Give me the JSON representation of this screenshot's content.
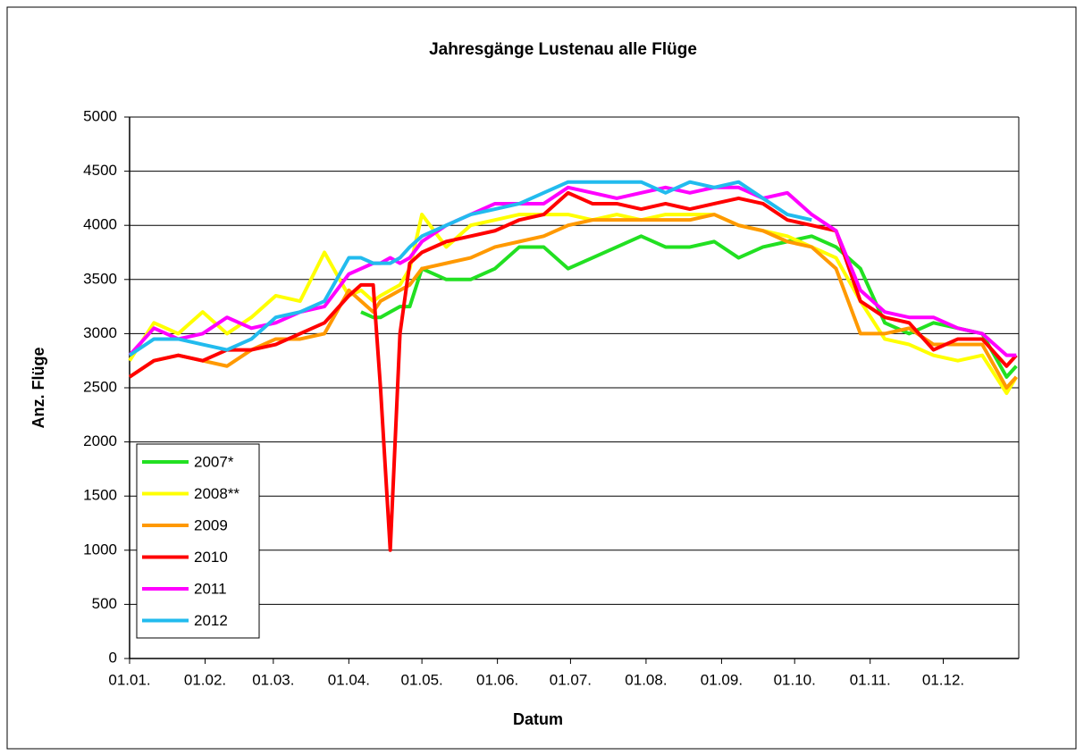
{
  "chart_data": {
    "type": "line",
    "title": "Jahresgänge Lustenau alle Flüge",
    "x_label": "Datum",
    "y_label": "Anz. Flüge",
    "x": [
      1,
      11,
      21,
      31,
      41,
      51,
      61,
      71,
      81,
      91,
      96,
      101,
      104,
      108,
      112,
      116,
      121,
      131,
      141,
      151,
      161,
      171,
      181,
      191,
      201,
      211,
      221,
      231,
      241,
      251,
      261,
      271,
      281,
      291,
      301,
      311,
      321,
      331,
      341,
      351,
      361,
      365
    ],
    "series": [
      {
        "name": "2007*",
        "color": "#22e022",
        "values": [
          null,
          null,
          null,
          null,
          null,
          null,
          null,
          null,
          null,
          null,
          3200,
          3150,
          3150,
          3200,
          3250,
          3250,
          3600,
          3500,
          3500,
          3600,
          3800,
          3800,
          3600,
          3700,
          3800,
          3900,
          3800,
          3800,
          3850,
          3700,
          3800,
          3850,
          3900,
          3800,
          3600,
          3100,
          3000,
          3100,
          3050,
          3000,
          2600,
          2700
        ]
      },
      {
        "name": "2008**",
        "color": "#ffff00",
        "values": [
          2750,
          3100,
          3000,
          3200,
          3000,
          3150,
          3350,
          3300,
          3750,
          3350,
          3400,
          3300,
          3350,
          3400,
          3450,
          3600,
          4100,
          3800,
          4000,
          4050,
          4100,
          4100,
          4100,
          4050,
          4100,
          4050,
          4100,
          4100,
          4100,
          4000,
          3950,
          3900,
          3800,
          3700,
          3300,
          2950,
          2900,
          2800,
          2750,
          2800,
          2450,
          2600
        ]
      },
      {
        "name": "2009",
        "color": "#ff9900",
        "values": [
          2600,
          2750,
          2800,
          2750,
          2700,
          2850,
          2950,
          2950,
          3000,
          3400,
          3300,
          3200,
          3300,
          3350,
          3400,
          3450,
          3600,
          3650,
          3700,
          3800,
          3850,
          3900,
          4000,
          4050,
          4050,
          4050,
          4050,
          4050,
          4100,
          4000,
          3950,
          3850,
          3800,
          3600,
          3000,
          3000,
          3050,
          2900,
          2900,
          2900,
          2500,
          2600
        ]
      },
      {
        "name": "2010",
        "color": "#ff0000",
        "values": [
          2600,
          2750,
          2800,
          2750,
          2850,
          2850,
          2900,
          3000,
          3100,
          3350,
          3450,
          3450,
          2500,
          1000,
          3000,
          3650,
          3750,
          3850,
          3900,
          3950,
          4050,
          4100,
          4300,
          4200,
          4200,
          4150,
          4200,
          4150,
          4200,
          4250,
          4200,
          4050,
          4000,
          3950,
          3300,
          3150,
          3100,
          2850,
          2950,
          2950,
          2700,
          2800
        ]
      },
      {
        "name": "2011",
        "color": "#ff00ff",
        "values": [
          2800,
          3050,
          2950,
          3000,
          3150,
          3050,
          3100,
          3200,
          3250,
          3550,
          3600,
          3650,
          3650,
          3700,
          3650,
          3700,
          3850,
          4000,
          4100,
          4200,
          4200,
          4200,
          4350,
          4300,
          4250,
          4300,
          4350,
          4300,
          4350,
          4350,
          4250,
          4300,
          4100,
          3950,
          3400,
          3200,
          3150,
          3150,
          3050,
          3000,
          2800,
          2800
        ]
      },
      {
        "name": "2012",
        "color": "#22bbee",
        "values": [
          2800,
          2950,
          2950,
          2900,
          2850,
          2950,
          3150,
          3200,
          3300,
          3700,
          3700,
          3650,
          3650,
          3650,
          3700,
          3800,
          3900,
          4000,
          4100,
          4150,
          4200,
          4300,
          4400,
          4400,
          4400,
          4400,
          4300,
          4400,
          4350,
          4400,
          4250,
          4100,
          4050,
          null,
          null,
          null,
          null,
          null,
          null,
          null,
          null,
          null
        ]
      }
    ],
    "xlim": [
      1,
      366
    ],
    "xticks": [
      {
        "value": 1,
        "label": "01.01."
      },
      {
        "value": 32,
        "label": "01.02."
      },
      {
        "value": 60,
        "label": "01.03."
      },
      {
        "value": 91,
        "label": "01.04."
      },
      {
        "value": 121,
        "label": "01.05."
      },
      {
        "value": 152,
        "label": "01.06."
      },
      {
        "value": 182,
        "label": "01.07."
      },
      {
        "value": 213,
        "label": "01.08."
      },
      {
        "value": 244,
        "label": "01.09."
      },
      {
        "value": 274,
        "label": "01.10."
      },
      {
        "value": 305,
        "label": "01.11."
      },
      {
        "value": 335,
        "label": "01.12."
      }
    ],
    "ylim": [
      0,
      5000
    ],
    "yticks": [
      0,
      500,
      1000,
      1500,
      2000,
      2500,
      3000,
      3500,
      4000,
      4500,
      5000
    ],
    "grid": true,
    "legend": "lower left"
  }
}
